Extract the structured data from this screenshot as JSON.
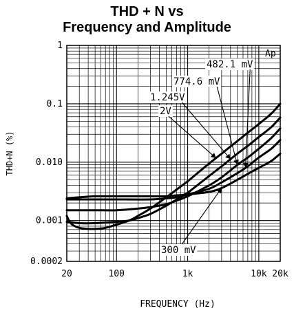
{
  "chart_data": {
    "type": "line",
    "title_lines": [
      "THD + N vs",
      "Frequency and Amplitude"
    ],
    "xlabel": "FREQUENCY (Hz)",
    "ylabel": "THD+N (%)",
    "x_scale": "log",
    "y_scale": "log",
    "xlim": [
      20,
      20000
    ],
    "ylim": [
      0.0002,
      1
    ],
    "grid": true,
    "x_ticks": [
      {
        "value": 20,
        "label": "20"
      },
      {
        "value": 100,
        "label": "100"
      },
      {
        "value": 1000,
        "label": "1k"
      },
      {
        "value": 10000,
        "label": "10k"
      },
      {
        "value": 20000,
        "label": "20k"
      }
    ],
    "y_ticks": [
      {
        "value": 1,
        "label": "1"
      },
      {
        "value": 0.1,
        "label": "0.1"
      },
      {
        "value": 0.01,
        "label": "0.010"
      },
      {
        "value": 0.001,
        "label": "0.001"
      },
      {
        "value": 0.0002,
        "label": "0.0002"
      }
    ],
    "corner_label": "Ap",
    "series": [
      {
        "name": "2V",
        "x": [
          20,
          22,
          25,
          30,
          40,
          50,
          70,
          100,
          150,
          200,
          300,
          500,
          700,
          1000,
          2000,
          3000,
          5000,
          7000,
          10000,
          15000,
          20000
        ],
        "y": [
          0.0012,
          0.00095,
          0.00082,
          0.00075,
          0.00072,
          0.00072,
          0.00075,
          0.00085,
          0.001,
          0.0012,
          0.0016,
          0.0025,
          0.0034,
          0.0047,
          0.0095,
          0.014,
          0.023,
          0.032,
          0.045,
          0.068,
          0.1
        ]
      },
      {
        "name": "1.245V",
        "x": [
          20,
          30,
          50,
          70,
          100,
          150,
          200,
          300,
          500,
          700,
          1000,
          2000,
          3000,
          5000,
          7000,
          10000,
          15000,
          20000
        ],
        "y": [
          0.00095,
          0.0009,
          0.0009,
          0.00092,
          0.00095,
          0.001,
          0.0011,
          0.0013,
          0.0018,
          0.0023,
          0.003,
          0.0058,
          0.0085,
          0.014,
          0.019,
          0.027,
          0.04,
          0.058
        ]
      },
      {
        "name": "774.6 mV",
        "x": [
          20,
          30,
          50,
          100,
          200,
          300,
          500,
          700,
          1000,
          2000,
          3000,
          5000,
          7000,
          10000,
          15000,
          20000
        ],
        "y": [
          0.0015,
          0.0015,
          0.0015,
          0.0015,
          0.0016,
          0.0017,
          0.0019,
          0.0022,
          0.0026,
          0.004,
          0.0055,
          0.009,
          0.012,
          0.017,
          0.026,
          0.038
        ]
      },
      {
        "name": "482.1 mV",
        "x": [
          20,
          50,
          100,
          300,
          500,
          700,
          1000,
          2000,
          3000,
          5000,
          7000,
          10000,
          15000,
          20000
        ],
        "y": [
          0.0023,
          0.0023,
          0.0023,
          0.0023,
          0.0024,
          0.0025,
          0.0028,
          0.0035,
          0.0045,
          0.0065,
          0.0085,
          0.012,
          0.017,
          0.024
        ]
      },
      {
        "name": "300 mV",
        "x": [
          20,
          30,
          50,
          100,
          200,
          300,
          500,
          700,
          1000,
          2000,
          3000,
          5000,
          7000,
          10000,
          15000,
          20000
        ],
        "y": [
          0.0024,
          0.0025,
          0.0026,
          0.0026,
          0.0026,
          0.0026,
          0.0026,
          0.0027,
          0.0028,
          0.0031,
          0.0036,
          0.005,
          0.0063,
          0.008,
          0.0105,
          0.014
        ]
      }
    ],
    "annotations": [
      {
        "series": "482.1 mV",
        "label": "482.1 mV"
      },
      {
        "series": "774.6 mV",
        "label": "774.6 mV"
      },
      {
        "series": "1.245V",
        "label": "1.245V"
      },
      {
        "series": "2V",
        "label": "2V"
      },
      {
        "series": "300 mV",
        "label": "300 mV"
      }
    ]
  }
}
